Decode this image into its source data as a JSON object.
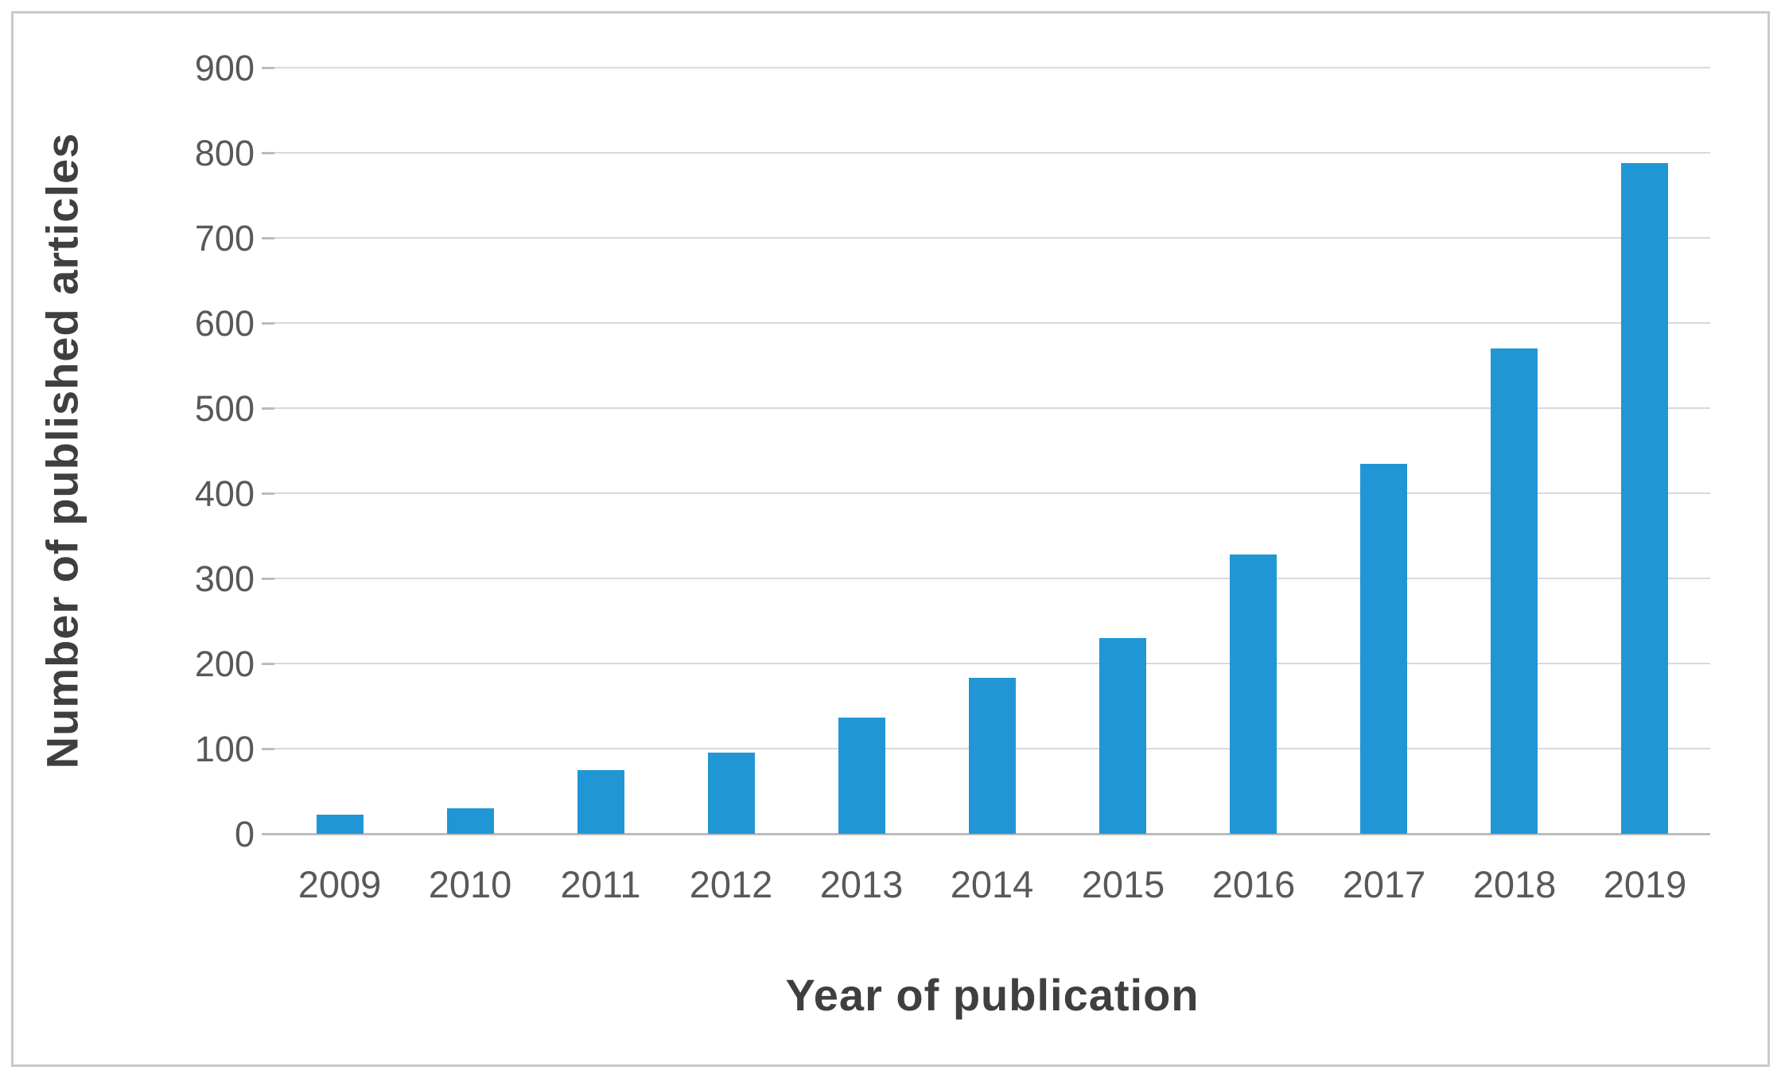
{
  "chart_data": {
    "type": "bar",
    "title": "",
    "xlabel": "Year of publication",
    "ylabel": "Number of published articles",
    "categories": [
      "2009",
      "2010",
      "2011",
      "2012",
      "2013",
      "2014",
      "2015",
      "2016",
      "2017",
      "2018",
      "2019"
    ],
    "values": [
      22,
      30,
      75,
      95,
      136,
      183,
      230,
      328,
      435,
      570,
      788
    ],
    "ylim": [
      0,
      900
    ],
    "y_ticks": [
      0,
      100,
      200,
      300,
      400,
      500,
      600,
      700,
      800,
      900
    ],
    "grid": "horizontal",
    "legend_position": "none",
    "bar_color": "#2196d5"
  },
  "colors": {
    "background": "#ffffff",
    "outer_border": "#c9c9c9",
    "gridline": "#d9d9d9",
    "axis_line": "#bcbcbc",
    "tick_label": "#595959",
    "axis_title": "#3f3f3f",
    "bar": "#2196d5"
  }
}
